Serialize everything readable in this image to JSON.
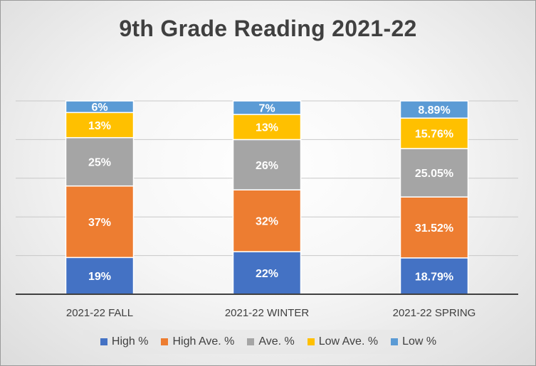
{
  "chart_data": {
    "type": "bar",
    "stacked": true,
    "title": "9th Grade Reading 2021-22",
    "categories": [
      "2021-22 FALL",
      "2021-22 WINTER",
      "2021-22 SPRING"
    ],
    "series": [
      {
        "name": "High %",
        "color": "#4472C4",
        "values": [
          19,
          22,
          18.79
        ],
        "labels": [
          "19%",
          "22%",
          "18.79%"
        ]
      },
      {
        "name": "High Ave. %",
        "color": "#ED7D31",
        "values": [
          37,
          32,
          31.52
        ],
        "labels": [
          "37%",
          "32%",
          "31.52%"
        ]
      },
      {
        "name": "Ave. %",
        "color": "#A5A5A5",
        "values": [
          25,
          26,
          25.05
        ],
        "labels": [
          "25%",
          "26%",
          "25.05%"
        ]
      },
      {
        "name": "Low Ave. %",
        "color": "#FFC000",
        "values": [
          13,
          13,
          15.76
        ],
        "labels": [
          "13%",
          "13%",
          "15.76%"
        ]
      },
      {
        "name": "Low %",
        "color": "#5B9BD5",
        "values": [
          6,
          7,
          8.89
        ],
        "labels": [
          "6%",
          "7%",
          "8.89%"
        ]
      }
    ],
    "ylim": [
      0,
      100
    ],
    "grid": true,
    "legend_position": "bottom"
  }
}
